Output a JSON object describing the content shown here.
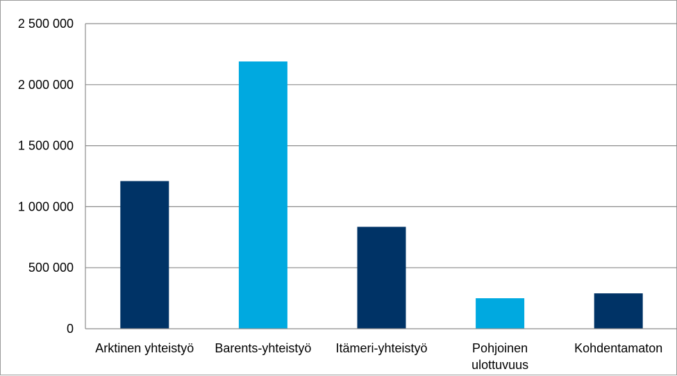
{
  "chart_data": {
    "type": "bar",
    "title": "",
    "xlabel": "",
    "ylabel": "",
    "categories": [
      [
        "Arktinen yhteistyö"
      ],
      [
        "Barents-yhteistyö"
      ],
      [
        "Itämeri-yhteistyö"
      ],
      [
        "Pohjoinen",
        "ulottuvuus"
      ],
      [
        "Kohdentamaton"
      ]
    ],
    "values": [
      1210000,
      2190000,
      835000,
      250000,
      290000
    ],
    "bar_colors": [
      "#003366",
      "#00a9e0",
      "#003366",
      "#00a9e0",
      "#003366"
    ],
    "ylim": [
      0,
      2500000
    ],
    "yticks": [
      0,
      500000,
      1000000,
      1500000,
      2000000,
      2500000
    ],
    "ytick_labels": [
      "0",
      "500 000",
      "1 000 000",
      "1 500 000",
      "2 000 000",
      "2 500 000"
    ],
    "grid": true,
    "legend": "none"
  }
}
